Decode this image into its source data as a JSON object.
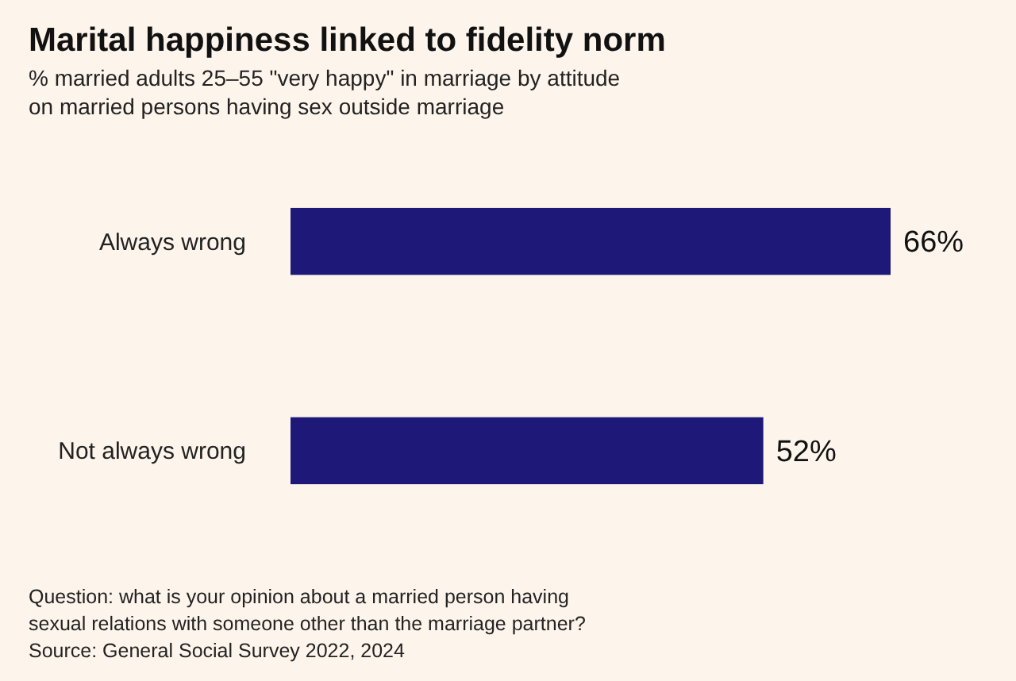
{
  "chart_data": {
    "type": "bar",
    "orientation": "horizontal",
    "title": "Marital happiness linked to fidelity norm",
    "subtitle": "% married adults 25–55 \"very happy\" in marriage by attitude on married persons having sex outside marriage",
    "categories": [
      "Always wrong",
      "Not always wrong"
    ],
    "values": [
      66,
      52
    ],
    "value_labels": [
      "66%",
      "52%"
    ],
    "color": "#1e1878",
    "annotations": [
      "Question: what is your opinion about a married person having sexual relations with someone other than the marriage partner?",
      "Source: General Social Survey 2022, 2024"
    ]
  }
}
